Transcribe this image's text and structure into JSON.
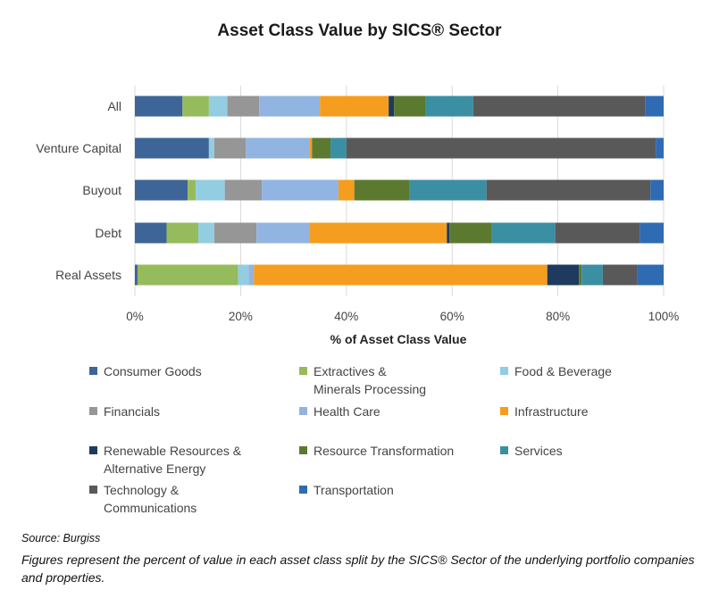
{
  "chart_data": {
    "type": "bar",
    "orientation": "horizontal",
    "stacked": true,
    "title": "Asset Class Value by SICS® Sector",
    "xlabel": "% of Asset Class Value",
    "ylabel": "",
    "xlim": [
      0,
      100
    ],
    "xticks": [
      "0%",
      "20%",
      "40%",
      "60%",
      "80%",
      "100%"
    ],
    "grid": "vertical",
    "legend_position": "bottom",
    "categories": [
      "All",
      "Venture Capital",
      "Buyout",
      "Debt",
      "Real Assets"
    ],
    "series": [
      {
        "name": "Consumer Goods",
        "color": "#3d6597",
        "values": [
          9.0,
          14.0,
          10.0,
          6.0,
          0.5
        ]
      },
      {
        "name": "Extractives & Minerals Processing",
        "color": "#96bb5c",
        "values": [
          5.0,
          0.0,
          1.5,
          6.0,
          19.0
        ]
      },
      {
        "name": "Food & Beverage",
        "color": "#93cde1",
        "values": [
          3.5,
          1.0,
          5.5,
          3.0,
          2.0
        ]
      },
      {
        "name": "Financials",
        "color": "#969696",
        "values": [
          6.0,
          6.0,
          7.0,
          8.0,
          0.0
        ]
      },
      {
        "name": "Health Care",
        "color": "#92b4e0",
        "values": [
          11.5,
          12.0,
          14.5,
          10.0,
          1.0
        ]
      },
      {
        "name": "Infrastructure",
        "color": "#f59d1e",
        "values": [
          13.0,
          0.5,
          3.0,
          26.0,
          55.5
        ]
      },
      {
        "name": "Renewable Resources & Alternative Energy",
        "color": "#1f3a5f",
        "values": [
          1.0,
          0.0,
          0.0,
          0.5,
          6.0
        ]
      },
      {
        "name": "Resource Transformation",
        "color": "#5b7a2f",
        "values": [
          6.0,
          3.5,
          10.5,
          8.0,
          0.5
        ]
      },
      {
        "name": "Services",
        "color": "#3b8fa3",
        "values": [
          9.0,
          3.0,
          14.5,
          12.0,
          4.0
        ]
      },
      {
        "name": "Technology & Communications",
        "color": "#595959",
        "values": [
          32.5,
          58.5,
          31.0,
          16.0,
          6.5
        ]
      },
      {
        "name": "Transportation",
        "color": "#2f6bb3",
        "values": [
          3.5,
          1.5,
          2.5,
          4.5,
          5.0
        ]
      }
    ]
  },
  "legend_layout": [
    "Consumer Goods",
    "Extractives &\nMinerals Processing",
    "Food & Beverage",
    "Financials",
    "Health Care",
    "Infrastructure",
    "Renewable Resources &\nAlternative Energy",
    "Resource Transformation",
    "Services",
    "Technology &\nCommunications",
    "Transportation"
  ],
  "source": "Source: Burgiss",
  "note": "Figures represent the percent of value in each asset class split by the SICS® Sector of the underlying portfolio companies and properties."
}
